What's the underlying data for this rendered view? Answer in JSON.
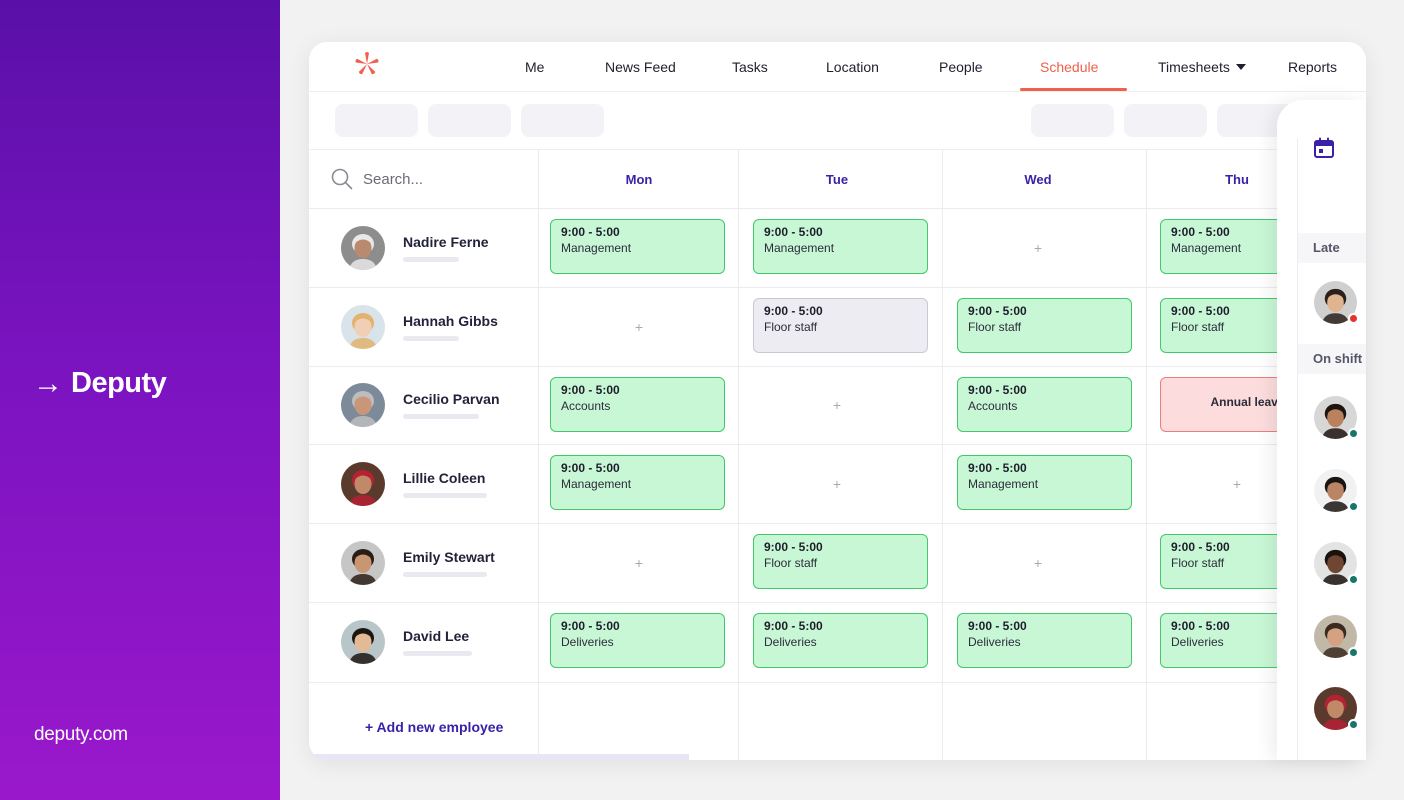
{
  "brand": {
    "name": "Deputy",
    "site": "deputy.com"
  },
  "nav": {
    "items": [
      {
        "label": "Me",
        "name": "nav-me"
      },
      {
        "label": "News Feed",
        "name": "nav-news-feed"
      },
      {
        "label": "Tasks",
        "name": "nav-tasks"
      },
      {
        "label": "Location",
        "name": "nav-location"
      },
      {
        "label": "People",
        "name": "nav-people"
      },
      {
        "label": "Schedule",
        "name": "nav-schedule",
        "active": true
      },
      {
        "label": "Timesheets",
        "name": "nav-timesheets",
        "dropdown": true
      },
      {
        "label": "Reports",
        "name": "nav-reports"
      }
    ]
  },
  "search": {
    "placeholder": "Search..."
  },
  "days": [
    "Mon",
    "Tue",
    "Wed",
    "Thu"
  ],
  "employees": [
    {
      "name": "Nadire Ferne",
      "avatar_bg": "#8d8d8d",
      "skin": "#b98a6e",
      "hair": "#e8e8e8"
    },
    {
      "name": "Hannah Gibbs",
      "avatar_bg": "#d9e3ea",
      "skin": "#f0cfb6",
      "hair": "#e2b36f"
    },
    {
      "name": "Cecilio Parvan",
      "avatar_bg": "#7c8a99",
      "skin": "#c9967a",
      "hair": "#bdbdbd"
    },
    {
      "name": "Lillie Coleen",
      "avatar_bg": "#5b3a2e",
      "skin": "#c08a68",
      "hair": "#b52233"
    },
    {
      "name": "Emily Stewart",
      "avatar_bg": "#c6c6c6",
      "skin": "#c89673",
      "hair": "#2a1d16"
    },
    {
      "name": "David Lee",
      "avatar_bg": "#b9c6c9",
      "skin": "#e3b996",
      "hair": "#1c1612"
    }
  ],
  "shifts": [
    [
      {
        "time": "9:00 - 5:00",
        "role": "Management"
      },
      {
        "time": "9:00 - 5:00",
        "role": "Management"
      },
      null,
      {
        "time": "9:00 - 5:00",
        "role": "Management"
      }
    ],
    [
      null,
      {
        "time": "9:00 - 5:00",
        "role": "Floor staff",
        "style": "gray"
      },
      {
        "time": "9:00 - 5:00",
        "role": "Floor staff"
      },
      {
        "time": "9:00 - 5:00",
        "role": "Floor staff"
      }
    ],
    [
      {
        "time": "9:00 - 5:00",
        "role": "Accounts"
      },
      null,
      {
        "time": "9:00 - 5:00",
        "role": "Accounts"
      },
      {
        "leave": "Annual leave"
      }
    ],
    [
      {
        "time": "9:00 - 5:00",
        "role": "Management"
      },
      null,
      {
        "time": "9:00 - 5:00",
        "role": "Management"
      },
      null
    ],
    [
      null,
      {
        "time": "9:00 - 5:00",
        "role": "Floor staff"
      },
      null,
      {
        "time": "9:00 - 5:00",
        "role": "Floor staff"
      }
    ],
    [
      {
        "time": "9:00 - 5:00",
        "role": "Deliveries"
      },
      {
        "time": "9:00 - 5:00",
        "role": "Deliveries"
      },
      {
        "time": "9:00 - 5:00",
        "role": "Deliveries"
      },
      {
        "time": "9:00 - 5:00",
        "role": "Deliveries"
      }
    ]
  ],
  "add_employee_label": "+ Add new employee",
  "empty_cell_glyph": "+",
  "side_panel": {
    "late_label": "Late",
    "on_shift_label": "On shift",
    "late": [
      {
        "skin": "#e0b48f",
        "hair": "#2b201a",
        "bg": "#cfcfcf",
        "status": "#e5332a"
      }
    ],
    "on_shift": [
      {
        "skin": "#b9815e",
        "hair": "#1e1410",
        "bg": "#d7d7d7",
        "status": "#16766a"
      },
      {
        "skin": "#b98565",
        "hair": "#1b1512",
        "bg": "#f1f1f1",
        "status": "#16766a"
      },
      {
        "skin": "#6e4631",
        "hair": "#1b120d",
        "bg": "#e3e3e3",
        "status": "#16766a"
      },
      {
        "skin": "#d4a283",
        "hair": "#3a2a1f",
        "bg": "#c2b8a8",
        "status": "#16766a"
      },
      {
        "skin": "#c08a68",
        "hair": "#b52233",
        "bg": "#5b3a2e",
        "status": "#16766a"
      }
    ]
  },
  "colors": {
    "accent": "#3b21a8",
    "active_nav": "#f0604a",
    "shift_green": "#c8f7d6",
    "shift_border": "#43c76b",
    "leave_red": "#fcdcdc"
  }
}
